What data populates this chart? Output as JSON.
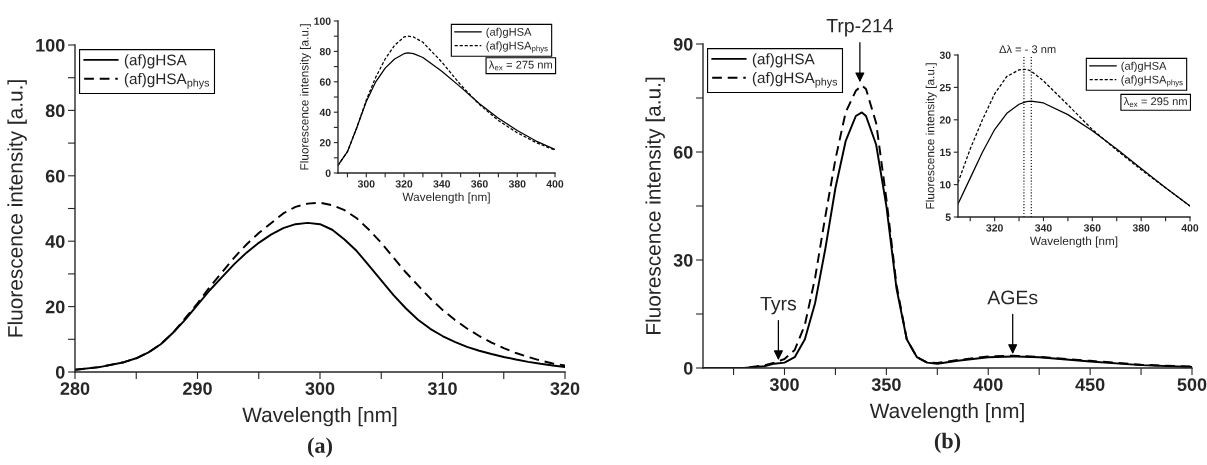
{
  "chart_data": [
    {
      "type": "line",
      "xlabel": "Wavelength [nm]",
      "ylabel": "Fluorescence intensity [a.u.]",
      "legend": "top left",
      "grid": false,
      "marker": "none",
      "xlim": [
        280,
        320
      ],
      "ylim": [
        0,
        100
      ],
      "xticks": [
        280,
        {
          "value": 285,
          "label": null
        },
        290,
        {
          "value": 295,
          "label": null
        },
        300,
        {
          "value": 305,
          "label": null
        },
        310,
        {
          "value": 315,
          "label": null
        },
        320
      ],
      "yticks": [
        0,
        {
          "value": 10,
          "label": null
        },
        20,
        {
          "value": 30,
          "label": null
        },
        40,
        {
          "value": 50,
          "label": null
        },
        60,
        {
          "value": 70,
          "label": null
        },
        80,
        {
          "value": 90,
          "label": null
        },
        100
      ],
      "x": [
        280,
        282,
        284,
        285,
        286,
        287,
        288,
        289,
        290,
        291,
        292,
        293,
        294,
        295,
        296,
        297,
        298,
        299,
        300,
        301,
        302,
        303,
        304,
        305,
        306,
        307,
        308,
        309,
        310,
        311,
        312,
        313,
        314,
        315,
        316,
        317,
        318,
        319,
        320
      ],
      "series": [
        {
          "name": "(af)gHSA",
          "color": "#000000",
          "line_style": "solid",
          "values": [
            0.7,
            1.5,
            3,
            4.2,
            6,
            8.5,
            12,
            16,
            20.5,
            25,
            29,
            33,
            36.5,
            39.5,
            42,
            44,
            45.2,
            45.6,
            45.2,
            43.5,
            40.5,
            37,
            32.5,
            28,
            23.5,
            19.5,
            16,
            13.2,
            11,
            9.2,
            7.7,
            6.5,
            5.5,
            4.6,
            3.8,
            3.1,
            2.5,
            2,
            1.5
          ]
        },
        {
          "name": "(af)gHSA$_{phys}$",
          "color": "#000000",
          "line_style": "dashed",
          "values": [
            0.7,
            1.5,
            3,
            4.2,
            6,
            8.5,
            12,
            16.5,
            21,
            26,
            30.5,
            35,
            39,
            42.5,
            45.5,
            48.5,
            50.5,
            51.5,
            51.8,
            51,
            49.5,
            47,
            43.5,
            39.5,
            35,
            30.5,
            26.5,
            22.5,
            19,
            16,
            13.3,
            11,
            9,
            7.3,
            5.8,
            4.6,
            3.5,
            2.6,
            2
          ]
        }
      ],
      "annotations": [
        "(a)"
      ]
    },
    {
      "type": "line",
      "xlabel": "Wavelength [nm]",
      "ylabel": "Fluorescence intensity [a.u.]",
      "legend": "top right",
      "grid": false,
      "marker": "none",
      "xlim": [
        285,
        400
      ],
      "ylim": [
        0,
        100
      ],
      "xticks": [
        {
          "value": 290,
          "label": null
        },
        300,
        {
          "value": 310,
          "label": null
        },
        320,
        {
          "value": 330,
          "label": null
        },
        340,
        {
          "value": 350,
          "label": null
        },
        360,
        {
          "value": 370,
          "label": null
        },
        380,
        {
          "value": 390,
          "label": null
        },
        400
      ],
      "yticks": [
        0,
        {
          "value": 10,
          "label": null
        },
        20,
        {
          "value": 30,
          "label": null
        },
        40,
        {
          "value": 50,
          "label": null
        },
        60,
        {
          "value": 70,
          "label": null
        },
        80,
        {
          "value": 90,
          "label": null
        },
        100
      ],
      "x": [
        285,
        290,
        295,
        300,
        305,
        310,
        315,
        320,
        322,
        325,
        330,
        340,
        350,
        360,
        370,
        380,
        390,
        400
      ],
      "series": [
        {
          "name": "(af)gHSA",
          "color": "#000000",
          "line_style": "solid",
          "values": [
            5,
            14,
            30,
            47,
            60,
            69,
            75,
            78.5,
            79,
            78.5,
            76,
            67,
            56.5,
            45.5,
            36,
            28,
            21,
            15.5
          ]
        },
        {
          "name": "(af)gHSA$_{phys}$",
          "color": "#000000",
          "line_style": "dashed",
          "values": [
            5,
            14,
            30,
            48,
            63,
            75,
            84,
            89.5,
            90,
            89.5,
            86,
            73,
            58,
            45,
            34.5,
            26.5,
            20,
            15
          ]
        }
      ],
      "annotations": [
        "λ$_{ex}$ = 275 nm"
      ]
    },
    {
      "type": "line",
      "xlabel": "Wavelength [nm]",
      "ylabel": "Fluorescence intensity [a.u.]",
      "legend": "top left",
      "grid": false,
      "marker": "none",
      "xlim": [
        260,
        500
      ],
      "ylim": [
        0,
        90
      ],
      "xticks": [
        {
          "value": 275,
          "label": null
        },
        300,
        {
          "value": 325,
          "label": null
        },
        350,
        {
          "value": 375,
          "label": null
        },
        400,
        {
          "value": 425,
          "label": null
        },
        450,
        {
          "value": 475,
          "label": null
        },
        500
      ],
      "yticks": [
        0,
        {
          "value": 15,
          "label": null
        },
        30,
        {
          "value": 45,
          "label": null
        },
        60,
        {
          "value": 75,
          "label": null
        },
        90
      ],
      "x": [
        260,
        280,
        290,
        295,
        300,
        305,
        310,
        315,
        320,
        325,
        330,
        335,
        338,
        340,
        345,
        350,
        355,
        360,
        365,
        370,
        375,
        385,
        400,
        412,
        425,
        450,
        475,
        500
      ],
      "series": [
        {
          "name": "(af)gHSA",
          "color": "#000000",
          "line_style": "solid",
          "values": [
            0,
            0,
            0.5,
            1.2,
            1.5,
            3,
            8,
            18,
            33,
            50,
            63,
            70,
            71,
            70,
            62,
            45,
            22,
            8,
            3,
            1.5,
            1.2,
            2,
            3,
            3.2,
            3,
            1.8,
            0.8,
            0.3
          ]
        },
        {
          "name": "(af)gHSA$_{phys}$",
          "color": "#000000",
          "line_style": "dashed",
          "values": [
            0,
            0,
            0.7,
            1.5,
            2.5,
            5,
            12,
            25,
            42,
            58,
            71,
            77,
            78.5,
            77.5,
            68,
            47,
            23,
            8,
            3,
            1.5,
            1.4,
            2.2,
            3.2,
            3.4,
            3.1,
            2,
            0.9,
            0.4
          ]
        }
      ],
      "annotations": [
        {
          "text": "Trp-214",
          "x": 337,
          "y": 79
        },
        {
          "text": "Tyrs",
          "x": 297,
          "y": 1.8
        },
        {
          "text": "AGEs",
          "x": 412,
          "y": 3.5
        },
        "(b)"
      ]
    },
    {
      "type": "line",
      "xlabel": "Wavelength [nm]",
      "ylabel": "Fluorescence intensity [a.u.]",
      "legend": "top right",
      "grid": false,
      "marker": "none",
      "xlim": [
        305,
        400
      ],
      "ylim": [
        5,
        30
      ],
      "xticks": [
        {
          "value": 310,
          "label": null
        },
        320,
        {
          "value": 330,
          "label": null
        },
        340,
        {
          "value": 350,
          "label": null
        },
        360,
        {
          "value": 370,
          "label": null
        },
        380,
        {
          "value": 390,
          "label": null
        },
        400
      ],
      "yticks": [
        5,
        10,
        15,
        20,
        25,
        30
      ],
      "x": [
        305,
        310,
        315,
        320,
        325,
        330,
        333,
        335,
        340,
        350,
        360,
        370,
        380,
        390,
        400
      ],
      "series": [
        {
          "name": "(af)gHSA",
          "color": "#000000",
          "line_style": "solid",
          "values": [
            7,
            11,
            15,
            18.5,
            21,
            22.4,
            22.8,
            22.9,
            22.6,
            20.8,
            18.3,
            15.5,
            12.5,
            9.5,
            6.7
          ]
        },
        {
          "name": "(af)gHSA$_{phys}$",
          "color": "#000000",
          "line_style": "dashed",
          "values": [
            10.3,
            15.5,
            20,
            24,
            26.7,
            27.7,
            27.8,
            27.5,
            26,
            22.3,
            18.5,
            15.3,
            12.3,
            9.5,
            6.7
          ]
        }
      ],
      "ref_lines": [
        {
          "axis": "x",
          "value": 332,
          "line_style": "dotted",
          "color": "#000000"
        },
        {
          "axis": "x",
          "value": 335,
          "line_style": "dotted",
          "color": "#000000"
        }
      ],
      "annotations": [
        {
          "text": "Δλ = - 3 nm",
          "x": 333.5,
          "y": 29.3
        },
        "λ$_{ex}$ = 295 nm"
      ]
    }
  ]
}
